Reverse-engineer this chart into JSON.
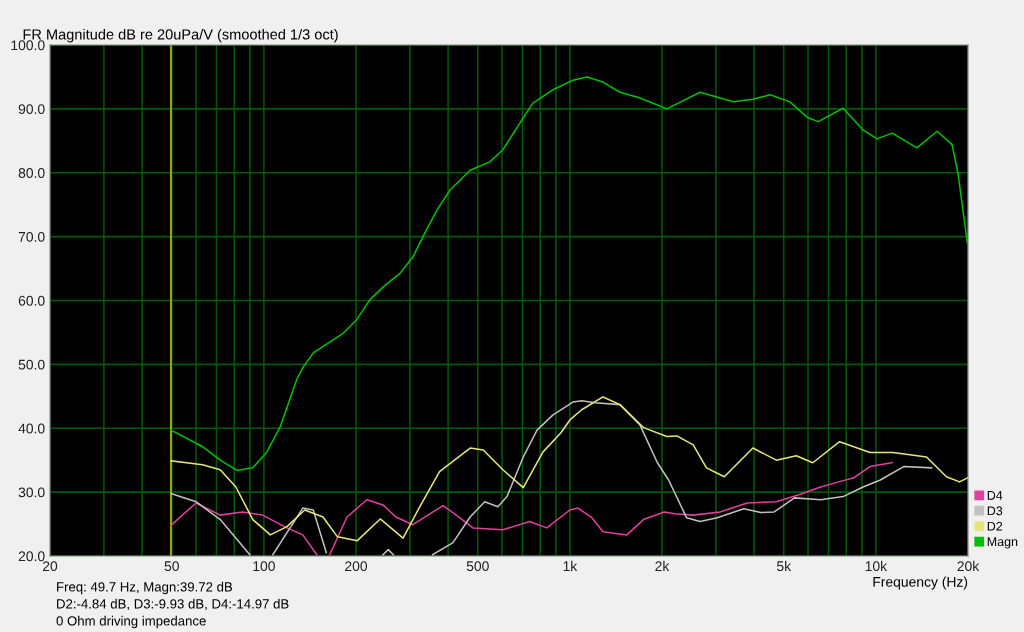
{
  "chart_data": {
    "type": "line",
    "title": "FR Magnitude dB re 20uPa/V (smoothed 1/3 oct)",
    "xlabel": "Frequency (Hz)",
    "log": "x",
    "grid": true,
    "legend": "bottom right",
    "marker": "none",
    "line_style": "solid",
    "xlim": [
      20,
      20000
    ],
    "ylim": [
      20,
      100
    ],
    "xticks": [
      20,
      {
        "value": 30,
        "label": null
      },
      {
        "value": 40,
        "label": null
      },
      50,
      {
        "value": 60,
        "label": null
      },
      {
        "value": 70,
        "label": null
      },
      {
        "value": 80,
        "label": null
      },
      {
        "value": 90,
        "label": null
      },
      100,
      200,
      {
        "value": 300,
        "label": null
      },
      {
        "value": 400,
        "label": null
      },
      500,
      {
        "value": 600,
        "label": null
      },
      {
        "value": 700,
        "label": null
      },
      {
        "value": 800,
        "label": null
      },
      {
        "value": 900,
        "label": null
      },
      {
        "value": 1000,
        "label": "1k"
      },
      {
        "value": 2000,
        "label": "2k"
      },
      {
        "value": 3000,
        "label": null
      },
      {
        "value": 4000,
        "label": null
      },
      {
        "value": 5000,
        "label": "5k"
      },
      {
        "value": 6000,
        "label": null
      },
      {
        "value": 7000,
        "label": null
      },
      {
        "value": 8000,
        "label": null
      },
      {
        "value": 9000,
        "label": null
      },
      {
        "value": 10000,
        "label": "10k"
      },
      {
        "value": 20000,
        "label": "20k"
      }
    ],
    "yticks": [
      {
        "value": 20,
        "label": "20.0"
      },
      {
        "value": 30,
        "label": "30.0"
      },
      {
        "value": 40,
        "label": "40.0"
      },
      {
        "value": 50,
        "label": "50.0"
      },
      {
        "value": 60,
        "label": "60.0"
      },
      {
        "value": 70,
        "label": "70.0"
      },
      {
        "value": 80,
        "label": "80.0"
      },
      {
        "value": 90,
        "label": "90.0"
      },
      {
        "value": 100,
        "label": "100.0"
      }
    ],
    "ref_lines": [
      {
        "axis": "x",
        "value": 49.7,
        "label": null,
        "color": "#a0a000"
      }
    ],
    "annotations": [
      "Freq: 49.7 Hz, Magn:39.72 dB",
      "D2:-4.84 dB, D3:-9.93 dB, D4:-14.97 dB",
      "0 Ohm driving impedance"
    ],
    "series": [
      {
        "name": "D4",
        "color": "#e040a0",
        "x": [
          49.7,
          60,
          72,
          85,
          99,
          119,
          134,
          149,
          156,
          164,
          187,
          217,
          245,
          270,
          307,
          385,
          436,
          482,
          604,
          739,
          840,
          1000,
          1062,
          1174,
          1283,
          1535,
          1740,
          2034,
          2201,
          2530,
          3095,
          3796,
          4730,
          5600,
          6600,
          7815,
          8430,
          9570,
          11300
        ],
        "values": [
          24.8,
          28.3,
          26.4,
          26.9,
          26.4,
          24.4,
          23.3,
          20.2,
          null,
          20.2,
          26.1,
          28.8,
          28.0,
          26.1,
          24.9,
          27.9,
          26.0,
          24.4,
          24.1,
          25.4,
          24.4,
          27.2,
          27.5,
          26.1,
          23.8,
          23.3,
          25.7,
          26.9,
          26.6,
          26.4,
          26.9,
          28.3,
          28.5,
          29.6,
          30.8,
          31.8,
          32.2,
          34.0,
          34.6
        ]
      },
      {
        "name": "D3",
        "color": "#c0c0c0",
        "x": [
          49.7,
          60,
          72,
          90,
          98,
          107,
          134,
          145,
          160,
          200,
          245,
          255,
          265,
          300,
          356,
          415,
          472,
          527,
          582,
          623,
          704,
          781,
          881,
          1023,
          1093,
          1207,
          1458,
          1695,
          1932,
          2102,
          2406,
          2662,
          3030,
          3700,
          4208,
          4650,
          5420,
          6600,
          7815,
          9080,
          10340,
          12330,
          15200
        ],
        "values": [
          29.8,
          28.5,
          25.7,
          20.2,
          null,
          20.2,
          27.5,
          27.2,
          20.5,
          null,
          20.2,
          21.0,
          20.2,
          null,
          20.2,
          22.1,
          26.1,
          28.5,
          27.7,
          29.3,
          35.5,
          39.7,
          42.1,
          44.1,
          44.3,
          44.0,
          43.7,
          40.5,
          34.6,
          31.9,
          26.0,
          25.4,
          26.0,
          27.4,
          26.8,
          26.9,
          29.1,
          28.8,
          29.3,
          30.8,
          31.9,
          34.0,
          33.8
        ]
      },
      {
        "name": "D2",
        "color": "#e6e678",
        "x": [
          49.7,
          63,
          72,
          81,
          92,
          105,
          119,
          136,
          156,
          174,
          202,
          240,
          285,
          323,
          375,
          472,
          521,
          604,
          704,
          817,
          935,
          1000,
          1093,
          1283,
          1458,
          1740,
          2075,
          2236,
          2530,
          2795,
          3196,
          3965,
          4730,
          5496,
          6220,
          7610,
          9570,
          11380,
          14640,
          17010,
          18760,
          19900
        ],
        "values": [
          34.9,
          34.3,
          33.5,
          30.8,
          25.7,
          23.3,
          24.6,
          27.2,
          26.1,
          23.0,
          22.4,
          25.8,
          22.8,
          27.7,
          33.2,
          36.9,
          36.6,
          33.5,
          30.7,
          36.3,
          39.3,
          41.3,
          42.9,
          44.9,
          43.7,
          40.1,
          38.7,
          38.8,
          37.4,
          33.8,
          32.4,
          36.9,
          35.0,
          35.7,
          34.6,
          37.9,
          36.2,
          36.2,
          35.5,
          32.4,
          31.6,
          32.2
        ]
      },
      {
        "name": "Magn",
        "color": "#00c000",
        "x": [
          49.7,
          63.2,
          72,
          81.7,
          92,
          102,
          113,
          128,
          134,
          145,
          164,
          182,
          201,
          222,
          245,
          279,
          307,
          331,
          368,
          406,
          472,
          548,
          604,
          687,
          757,
          881,
          1023,
          1138,
          1283,
          1458,
          1695,
          2075,
          2662,
          3411,
          3965,
          4509,
          5236,
          5956,
          6471,
          7814,
          9080,
          10090,
          11300,
          13620,
          15850,
          17740,
          18540,
          19900
        ],
        "values": [
          39.7,
          37.1,
          35.0,
          33.4,
          33.8,
          36.2,
          40.2,
          47.6,
          49.5,
          51.8,
          53.5,
          54.9,
          57.0,
          60.1,
          62.1,
          64.3,
          66.8,
          70.0,
          74.2,
          77.3,
          80.4,
          81.7,
          83.6,
          87.8,
          90.9,
          93.0,
          94.5,
          95.0,
          94.2,
          92.6,
          91.7,
          90.0,
          92.6,
          91.1,
          91.5,
          92.2,
          91.1,
          88.7,
          88.0,
          90.1,
          86.7,
          85.3,
          86.2,
          83.9,
          86.5,
          84.4,
          80.0,
          69.0
        ]
      }
    ]
  }
}
